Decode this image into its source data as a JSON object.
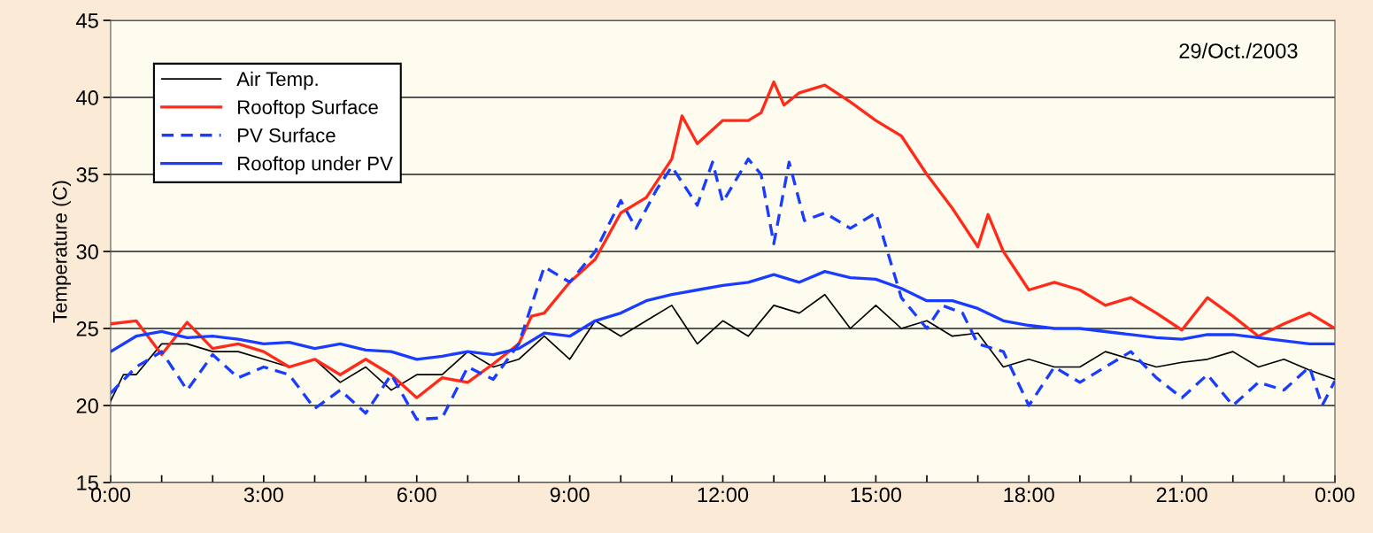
{
  "chart_data": {
    "type": "line",
    "ylabel": "Temperature (C)",
    "annotations": [
      "29/Oct./2003"
    ],
    "xlim": [
      0,
      24
    ],
    "ylim": [
      15,
      45
    ],
    "yticks": [
      15,
      20,
      25,
      30,
      35,
      40,
      45
    ],
    "xticks": [
      {
        "value": 0,
        "label": "0:00"
      },
      {
        "value": 1,
        "label": null
      },
      {
        "value": 2,
        "label": null
      },
      {
        "value": 3,
        "label": "3:00"
      },
      {
        "value": 4,
        "label": null
      },
      {
        "value": 5,
        "label": null
      },
      {
        "value": 6,
        "label": "6:00"
      },
      {
        "value": 7,
        "label": null
      },
      {
        "value": 8,
        "label": null
      },
      {
        "value": 9,
        "label": "9:00"
      },
      {
        "value": 10,
        "label": null
      },
      {
        "value": 11,
        "label": null
      },
      {
        "value": 12,
        "label": "12:00"
      },
      {
        "value": 13,
        "label": null
      },
      {
        "value": 14,
        "label": null
      },
      {
        "value": 15,
        "label": "15:00"
      },
      {
        "value": 16,
        "label": null
      },
      {
        "value": 17,
        "label": null
      },
      {
        "value": 18,
        "label": "18:00"
      },
      {
        "value": 19,
        "label": null
      },
      {
        "value": 20,
        "label": null
      },
      {
        "value": 21,
        "label": "21:00"
      },
      {
        "value": 22,
        "label": null
      },
      {
        "value": 23,
        "label": null
      },
      {
        "value": 24,
        "label": "0:00"
      }
    ],
    "grid": "y",
    "legend": "top left",
    "marker": "none",
    "series": [
      {
        "name": "Air Temp.",
        "color": "#000000",
        "line_style": "solid",
        "x": [
          0,
          0.25,
          0.5,
          1,
          1.5,
          2,
          2.5,
          3,
          3.5,
          4,
          4.5,
          5,
          5.5,
          6,
          6.5,
          7,
          7.5,
          8,
          8.5,
          9,
          9.5,
          10,
          10.5,
          11,
          11.5,
          12,
          12.5,
          13,
          13.5,
          14,
          14.5,
          15,
          15.5,
          16,
          16.5,
          17,
          17.5,
          18,
          18.5,
          19,
          19.5,
          20,
          20.5,
          21,
          21.5,
          22,
          22.5,
          23,
          23.5,
          24
        ],
        "values": [
          20.3,
          22,
          22,
          24,
          24,
          23.5,
          23.5,
          23,
          22.5,
          23,
          21.5,
          22.5,
          21,
          22,
          22,
          23.5,
          22.5,
          23,
          24.5,
          23,
          25.5,
          24.5,
          25.5,
          26.5,
          24,
          25.5,
          24.5,
          26.5,
          26,
          27.2,
          25,
          26.5,
          25,
          25.5,
          24.5,
          24.7,
          22.5,
          23,
          22.5,
          22.5,
          23.5,
          23,
          22.5,
          22.8,
          23,
          23.5,
          22.5,
          23,
          22.3,
          21.7
        ]
      },
      {
        "name": "Rooftop Surface",
        "color": "#ff2a1a",
        "line_style": "solid",
        "x": [
          0,
          0.5,
          1,
          1.5,
          2,
          2.5,
          3,
          3.5,
          4,
          4.5,
          5,
          5.5,
          6,
          6.5,
          7,
          7.5,
          8,
          8.25,
          8.5,
          9,
          9.5,
          10,
          10.5,
          11,
          11.2,
          11.5,
          12,
          12.5,
          12.75,
          13,
          13.2,
          13.5,
          14,
          14.5,
          15,
          15.5,
          16,
          16.5,
          17,
          17.2,
          17.5,
          18,
          18.5,
          19,
          19.5,
          20,
          20.5,
          21,
          21.5,
          22,
          22.5,
          23,
          23.5,
          24
        ],
        "values": [
          25.3,
          25.5,
          23.3,
          25.4,
          23.7,
          24,
          23.5,
          22.5,
          23,
          22,
          23,
          22,
          20.5,
          21.8,
          21.5,
          22.7,
          24,
          25.8,
          26,
          28,
          29.5,
          32.5,
          33.5,
          36,
          38.8,
          37,
          38.5,
          38.5,
          39,
          41,
          39.5,
          40.3,
          40.8,
          39.7,
          38.5,
          37.5,
          35,
          32.8,
          30.3,
          32.4,
          30,
          27.5,
          28,
          27.5,
          26.5,
          27,
          26,
          24.9,
          27,
          25.8,
          24.5,
          25.3,
          26,
          25
        ]
      },
      {
        "name": "PV Surface",
        "color": "#1a3cff",
        "line_style": "dashed",
        "x": [
          0,
          0.5,
          1,
          1.5,
          2,
          2.5,
          3,
          3.5,
          4,
          4.5,
          5,
          5.5,
          6,
          6.5,
          7,
          7.5,
          8,
          8.3,
          8.5,
          9,
          9.5,
          10,
          10.3,
          10.7,
          11,
          11.5,
          11.8,
          12,
          12.5,
          12.75,
          13,
          13.3,
          13.6,
          14,
          14.5,
          15,
          15.5,
          16,
          16.3,
          16.7,
          17,
          17.5,
          18,
          18.5,
          19,
          19.5,
          20,
          20.5,
          21,
          21.5,
          22,
          22.5,
          23,
          23.5,
          23.75,
          24
        ],
        "values": [
          20.8,
          22.5,
          23.5,
          21,
          23.3,
          21.8,
          22.5,
          22,
          19.8,
          21,
          19.5,
          22,
          19.1,
          19.2,
          22.5,
          21.7,
          24,
          27,
          29,
          28,
          30,
          33.3,
          31.5,
          34,
          35.5,
          33,
          35.8,
          33.2,
          36,
          35,
          30.5,
          35.8,
          32,
          32.5,
          31.5,
          32.5,
          27,
          25,
          26.5,
          26,
          24,
          23.5,
          20,
          22.5,
          21.5,
          22.5,
          23.5,
          21.8,
          20.5,
          22,
          20,
          21.5,
          21,
          22.5,
          20,
          21.6
        ]
      },
      {
        "name": "Rooftop under PV",
        "color": "#1a3cff",
        "line_style": "solid",
        "x": [
          0,
          0.5,
          1,
          1.5,
          2,
          2.5,
          3,
          3.5,
          4,
          4.5,
          5,
          5.5,
          6,
          6.5,
          7,
          7.5,
          8,
          8.5,
          9,
          9.5,
          10,
          10.5,
          11,
          11.5,
          12,
          12.5,
          13,
          13.5,
          14,
          14.5,
          15,
          15.5,
          16,
          16.5,
          17,
          17.5,
          18,
          18.5,
          19,
          19.5,
          20,
          20.5,
          21,
          21.5,
          22,
          22.5,
          23,
          23.5,
          24
        ],
        "values": [
          23.5,
          24.5,
          24.8,
          24.4,
          24.5,
          24.3,
          24,
          24.1,
          23.7,
          24,
          23.6,
          23.5,
          23,
          23.2,
          23.5,
          23.3,
          23.7,
          24.7,
          24.5,
          25.5,
          26,
          26.8,
          27.2,
          27.5,
          27.8,
          28,
          28.5,
          28,
          28.7,
          28.3,
          28.2,
          27.6,
          26.8,
          26.8,
          26.3,
          25.5,
          25.2,
          25,
          25,
          24.8,
          24.6,
          24.4,
          24.3,
          24.6,
          24.6,
          24.4,
          24.2,
          24,
          24
        ]
      }
    ]
  }
}
